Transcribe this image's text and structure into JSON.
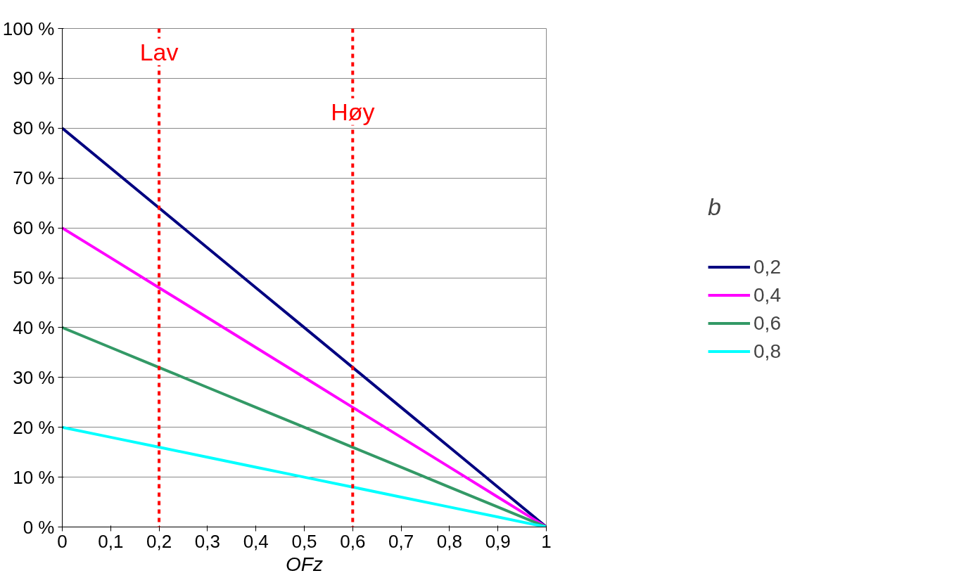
{
  "chart_data": {
    "type": "line",
    "xlabel": "OFz",
    "legend_title": "b",
    "x": [
      0,
      0.1,
      0.2,
      0.3,
      0.4,
      0.5,
      0.6,
      0.7,
      0.8,
      0.9,
      1
    ],
    "series": [
      {
        "name": "0,2",
        "color": "#000080",
        "values": [
          80,
          72,
          64,
          56,
          48,
          40,
          32,
          24,
          16,
          8,
          0
        ]
      },
      {
        "name": "0,4",
        "color": "#ff00ff",
        "values": [
          60,
          54,
          48,
          42,
          36,
          30,
          24,
          18,
          12,
          6,
          0
        ]
      },
      {
        "name": "0,6",
        "color": "#339966",
        "values": [
          40,
          36,
          32,
          28,
          24,
          20,
          16,
          12,
          8,
          4,
          0
        ]
      },
      {
        "name": "0,8",
        "color": "#00ffff",
        "values": [
          20,
          18,
          16,
          14,
          12,
          10,
          8,
          6,
          4,
          2,
          0
        ]
      }
    ],
    "xlim": [
      0,
      1
    ],
    "ylim": [
      0,
      100
    ],
    "xticks": [
      0,
      {
        "value": 0.1,
        "label": "0,1"
      },
      {
        "value": 0.2,
        "label": "0,2"
      },
      {
        "value": 0.3,
        "label": "0,3"
      },
      {
        "value": 0.4,
        "label": "0,4"
      },
      {
        "value": 0.5,
        "label": "0,5"
      },
      {
        "value": 0.6,
        "label": "0,6"
      },
      {
        "value": 0.7,
        "label": "0,7"
      },
      {
        "value": 0.8,
        "label": "0,8"
      },
      {
        "value": 0.9,
        "label": "0,9"
      },
      1
    ],
    "yticks": [
      {
        "value": 0,
        "label": "0 %"
      },
      {
        "value": 10,
        "label": "10 %"
      },
      {
        "value": 20,
        "label": "20 %"
      },
      {
        "value": 30,
        "label": "30 %"
      },
      {
        "value": 40,
        "label": "40 %"
      },
      {
        "value": 50,
        "label": "50 %"
      },
      {
        "value": 60,
        "label": "60 %"
      },
      {
        "value": 70,
        "label": "70 %"
      },
      {
        "value": 80,
        "label": "80 %"
      },
      {
        "value": 90,
        "label": "90 %"
      },
      {
        "value": 100,
        "label": "100 %"
      }
    ],
    "ref_lines": [
      {
        "axis": "x",
        "value": 0.2,
        "label": "Lav",
        "color": "#ff0000",
        "line_style": "dashed"
      },
      {
        "axis": "x",
        "value": 0.6,
        "label": "Høy",
        "color": "#ff0000",
        "line_style": "dashed"
      }
    ],
    "grid": "y",
    "legend": "right",
    "marker": "none",
    "line_style": "solid"
  }
}
